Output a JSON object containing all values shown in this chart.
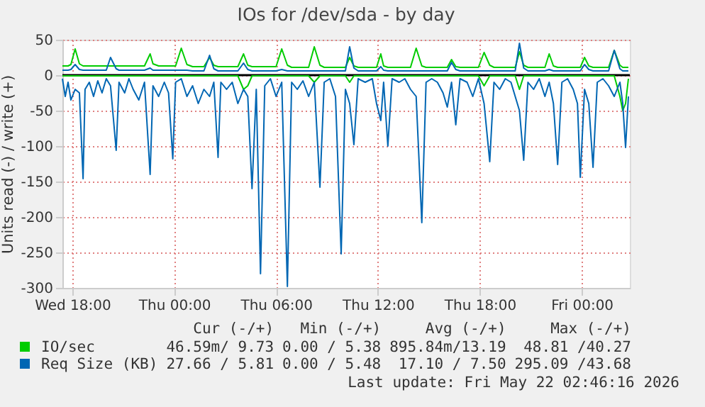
{
  "chart_data": {
    "type": "line",
    "title": "IOs for /dev/sda - by day",
    "ylabel": "Units read (-) / write (+)",
    "x": [
      "2026-05-20T17:25",
      "2026-05-20T17:35",
      "2026-05-20T17:45",
      "2026-05-20T17:55",
      "2026-05-20T18:10",
      "2026-05-20T18:25",
      "2026-05-20T18:38",
      "2026-05-20T18:45",
      "2026-05-20T19:00",
      "2026-05-20T19:15",
      "2026-05-20T19:30",
      "2026-05-20T19:45",
      "2026-05-20T20:00",
      "2026-05-20T20:15",
      "2026-05-20T20:35",
      "2026-05-20T20:45",
      "2026-05-20T21:05",
      "2026-05-20T21:20",
      "2026-05-20T21:35",
      "2026-05-20T21:55",
      "2026-05-20T22:15",
      "2026-05-20T22:35",
      "2026-05-20T22:45",
      "2026-05-20T23:05",
      "2026-05-20T23:25",
      "2026-05-20T23:40",
      "2026-05-20T23:55",
      "2026-05-21T00:05",
      "2026-05-21T00:25",
      "2026-05-21T00:45",
      "2026-05-21T01:05",
      "2026-05-21T01:25",
      "2026-05-21T01:45",
      "2026-05-21T02:05",
      "2026-05-21T02:20",
      "2026-05-21T02:35",
      "2026-05-21T02:45",
      "2026-05-21T03:05",
      "2026-05-21T03:25",
      "2026-05-21T03:45",
      "2026-05-21T04:05",
      "2026-05-21T04:20",
      "2026-05-21T04:35",
      "2026-05-21T04:50",
      "2026-05-21T05:05",
      "2026-05-21T05:20",
      "2026-05-21T05:40",
      "2026-05-21T06:00",
      "2026-05-21T06:20",
      "2026-05-21T06:40",
      "2026-05-21T06:55",
      "2026-05-21T07:15",
      "2026-05-21T07:35",
      "2026-05-21T07:55",
      "2026-05-21T08:15",
      "2026-05-21T08:35",
      "2026-05-21T08:50",
      "2026-05-21T09:10",
      "2026-05-21T09:30",
      "2026-05-21T09:50",
      "2026-05-21T10:05",
      "2026-05-21T10:20",
      "2026-05-21T10:35",
      "2026-05-21T10:50",
      "2026-05-21T11:15",
      "2026-05-21T11:40",
      "2026-05-21T11:55",
      "2026-05-21T12:10",
      "2026-05-21T12:20",
      "2026-05-21T12:35",
      "2026-05-21T12:50",
      "2026-05-21T13:15",
      "2026-05-21T13:35",
      "2026-05-21T13:55",
      "2026-05-21T14:15",
      "2026-05-21T14:35",
      "2026-05-21T14:50",
      "2026-05-21T15:10",
      "2026-05-21T15:30",
      "2026-05-21T15:50",
      "2026-05-21T16:05",
      "2026-05-21T16:20",
      "2026-05-21T16:35",
      "2026-05-21T16:50",
      "2026-05-21T17:15",
      "2026-05-21T17:35",
      "2026-05-21T17:55",
      "2026-05-21T18:15",
      "2026-05-21T18:35",
      "2026-05-21T18:50",
      "2026-05-21T19:10",
      "2026-05-21T19:30",
      "2026-05-21T19:50",
      "2026-05-21T20:05",
      "2026-05-21T20:20",
      "2026-05-21T20:35",
      "2026-05-21T20:50",
      "2026-05-21T21:10",
      "2026-05-21T21:30",
      "2026-05-21T21:50",
      "2026-05-21T22:05",
      "2026-05-21T22:20",
      "2026-05-21T22:35",
      "2026-05-21T22:50",
      "2026-05-21T23:10",
      "2026-05-21T23:30",
      "2026-05-21T23:45",
      "2026-05-21T23:55",
      "2026-05-22T00:10",
      "2026-05-22T00:25",
      "2026-05-22T00:40",
      "2026-05-22T00:55",
      "2026-05-22T01:15",
      "2026-05-22T01:35",
      "2026-05-22T01:55",
      "2026-05-22T02:15",
      "2026-05-22T02:25",
      "2026-05-22T02:35",
      "2026-05-22T02:45"
    ],
    "series": [
      {
        "name": "IO/sec",
        "color": "#00cc00",
        "values": [
          13,
          13,
          13,
          15,
          37,
          16,
          13,
          13,
          13,
          13,
          13,
          13,
          13,
          13,
          13,
          13,
          13,
          13,
          13,
          13,
          13,
          30,
          16,
          13,
          13,
          13,
          13,
          13,
          38,
          15,
          12,
          12,
          12,
          25,
          14,
          12,
          12,
          12,
          12,
          12,
          30,
          14,
          12,
          12,
          12,
          12,
          12,
          12,
          37,
          14,
          11,
          11,
          11,
          11,
          40,
          14,
          11,
          11,
          11,
          11,
          11,
          25,
          13,
          11,
          11,
          11,
          11,
          30,
          13,
          11,
          11,
          11,
          11,
          11,
          38,
          13,
          11,
          11,
          11,
          11,
          11,
          22,
          12,
          11,
          11,
          11,
          11,
          32,
          14,
          11,
          11,
          11,
          11,
          11,
          33,
          14,
          11,
          11,
          11,
          11,
          30,
          13,
          11,
          11,
          11,
          11,
          11,
          11,
          25,
          13,
          11,
          11,
          11,
          11,
          35,
          14,
          11,
          11,
          11
        ]
      },
      {
        "color": "#00cc00",
        "values": [
          -1,
          -1,
          -1,
          -1,
          -1,
          -1,
          -1,
          -1,
          -1,
          -1,
          -1,
          -1,
          -1,
          -1,
          -1,
          -1,
          -1,
          -1,
          -1,
          -1,
          -1,
          -1,
          -1,
          -1,
          -1,
          -1,
          -1,
          -1,
          -1,
          -1,
          -1,
          -1,
          -1,
          -1,
          -1,
          -1,
          -1,
          -1,
          -1,
          -1,
          -20,
          -15,
          -1,
          -1,
          -1,
          -1,
          -1,
          -1,
          -1,
          -1,
          -1,
          -1,
          -1,
          -1,
          -10,
          -1,
          -1,
          -1,
          -1,
          -1,
          -1,
          -10,
          -1,
          -1,
          -1,
          -1,
          -1,
          -1,
          -1,
          -1,
          -1,
          -1,
          -1,
          -1,
          -1,
          -1,
          -1,
          -1,
          -1,
          -1,
          -1,
          -1,
          -1,
          -1,
          -1,
          -1,
          -1,
          -15,
          -1,
          -1,
          -1,
          -1,
          -1,
          -1,
          -20,
          -1,
          -1,
          -1,
          -1,
          -1,
          -1,
          -1,
          -1,
          -1,
          -1,
          -1,
          -1,
          -1,
          -1,
          -1,
          -1,
          -1,
          -1,
          -1,
          -1,
          -30,
          -50,
          -40,
          -5
        ]
      },
      {
        "name": "Req Size (KB)",
        "color": "#0066b3",
        "values": [
          7,
          7,
          7,
          8,
          15,
          8,
          7,
          7,
          7,
          7,
          7,
          7,
          7,
          25,
          9,
          7,
          7,
          7,
          7,
          7,
          7,
          10,
          7,
          7,
          7,
          7,
          7,
          7,
          7,
          7,
          6,
          6,
          6,
          28,
          9,
          6,
          6,
          6,
          6,
          6,
          17,
          8,
          6,
          6,
          6,
          6,
          6,
          6,
          8,
          6,
          6,
          6,
          6,
          6,
          6,
          6,
          6,
          6,
          6,
          6,
          6,
          40,
          10,
          6,
          6,
          6,
          6,
          12,
          7,
          6,
          6,
          6,
          6,
          6,
          6,
          6,
          6,
          6,
          6,
          6,
          6,
          18,
          8,
          6,
          6,
          6,
          6,
          6,
          6,
          6,
          6,
          6,
          6,
          6,
          45,
          10,
          6,
          6,
          6,
          6,
          8,
          6,
          6,
          6,
          6,
          6,
          6,
          6,
          15,
          8,
          6,
          6,
          6,
          6,
          35,
          9,
          6,
          6,
          6
        ]
      },
      {
        "color": "#0066b3",
        "values": [
          -5,
          -30,
          -10,
          -35,
          -20,
          -25,
          -146,
          -20,
          -10,
          -30,
          -8,
          -25,
          -5,
          -15,
          -106,
          -10,
          -25,
          -5,
          -20,
          -35,
          -10,
          -140,
          -15,
          -30,
          -10,
          -25,
          -118,
          -10,
          -5,
          -30,
          -15,
          -40,
          -20,
          -30,
          -10,
          -116,
          -10,
          -20,
          -10,
          -40,
          -20,
          -30,
          -160,
          -20,
          -280,
          -15,
          -5,
          -30,
          -10,
          -298,
          -10,
          -20,
          -8,
          -30,
          -10,
          -158,
          -10,
          -5,
          -30,
          -252,
          -20,
          -40,
          -98,
          -5,
          -10,
          -5,
          -40,
          -64,
          -10,
          -100,
          -5,
          -10,
          -5,
          -20,
          -30,
          -208,
          -10,
          -5,
          -10,
          -25,
          -45,
          -10,
          -70,
          -5,
          -10,
          -30,
          -5,
          -40,
          -122,
          -10,
          -20,
          -5,
          -10,
          -30,
          -50,
          -120,
          -10,
          -20,
          -5,
          -30,
          -10,
          -40,
          -126,
          -10,
          -5,
          -20,
          -40,
          -144,
          -20,
          -40,
          -130,
          -10,
          -5,
          -15,
          -30,
          -10,
          -40,
          -102,
          -30
        ]
      }
    ],
    "xlim": [
      "2026-05-20T17:25",
      "2026-05-22T02:50"
    ],
    "xticks": [
      {
        "value": "2026-05-20T18:00",
        "label": "Wed 18:00"
      },
      {
        "value": "2026-05-21T00:00",
        "label": "Thu 00:00"
      },
      {
        "value": "2026-05-21T06:00",
        "label": "Thu 06:00"
      },
      {
        "value": "2026-05-21T12:00",
        "label": "Thu 12:00"
      },
      {
        "value": "2026-05-21T18:00",
        "label": "Thu 18:00"
      },
      {
        "value": "2026-05-22T00:00",
        "label": "Fri 00:00"
      }
    ],
    "ylim": [
      -300,
      50
    ],
    "yticks": [
      -300,
      -250,
      -200,
      -150,
      -100,
      -50,
      0,
      50
    ],
    "ref_lines": [
      {
        "axis": "y",
        "value": 0,
        "color": "#000000"
      }
    ],
    "grid": true,
    "legend": "bottom",
    "annotations": [
      "Cur (-/+)",
      "Min (-/+)",
      "Avg (-/+)",
      "Max (-/+)",
      "46.59m/ 9.73",
      "0.00 / 5.38",
      "895.84m/13.19",
      "48.81 /40.27",
      "27.66 / 5.81",
      "0.00 / 5.48",
      "17.10 / 7.50",
      "295.09 /43.68",
      "Last update: Fri May 22 02:46:16 2026"
    ]
  }
}
